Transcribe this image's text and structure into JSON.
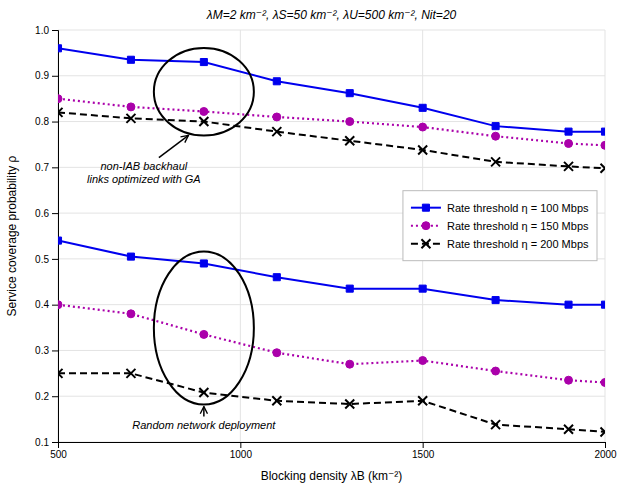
{
  "chart_data": {
    "type": "line",
    "title": "λM=2 km⁻², λS=50 km⁻², λU=500 km⁻², Nit=20",
    "xlabel": "Blocking density λB (km⁻²)",
    "ylabel": "Service coverage probability ρ",
    "x": [
      500,
      700,
      900,
      1100,
      1300,
      1500,
      1700,
      1900,
      2000
    ],
    "series": [
      {
        "name": "Rate threshold η = 100 Mbps",
        "color": "#0000EE",
        "marker": "square",
        "line_style": "solid",
        "values": [
          0.96,
          0.935,
          0.93,
          0.888,
          0.862,
          0.83,
          0.79,
          0.778,
          0.778
        ]
      },
      {
        "name": "Rate threshold η = 150 Mbps",
        "color": "#AA00AA",
        "marker": "circle",
        "line_style": "dotted",
        "values": [
          0.85,
          0.832,
          0.822,
          0.81,
          0.8,
          0.788,
          0.768,
          0.752,
          0.748
        ]
      },
      {
        "name": "Rate threshold η = 200 Mbps",
        "color": "#000000",
        "marker": "x",
        "line_style": "dashed",
        "values": [
          0.82,
          0.807,
          0.8,
          0.778,
          0.758,
          0.738,
          0.712,
          0.702,
          0.698
        ]
      },
      {
        "color": "#0000EE",
        "marker": "square",
        "line_style": "solid",
        "values": [
          0.54,
          0.505,
          0.49,
          0.46,
          0.435,
          0.435,
          0.41,
          0.4,
          0.4
        ]
      },
      {
        "color": "#AA00AA",
        "marker": "circle",
        "line_style": "dotted",
        "values": [
          0.4,
          0.38,
          0.335,
          0.295,
          0.27,
          0.278,
          0.255,
          0.235,
          0.23
        ]
      },
      {
        "color": "#000000",
        "marker": "x",
        "line_style": "dashed",
        "values": [
          0.25,
          0.25,
          0.208,
          0.19,
          0.183,
          0.19,
          0.138,
          0.128,
          0.122
        ]
      }
    ],
    "annotations": [
      "non-IAB backhaul\nlinks optimized with GA",
      "Random network deployment"
    ],
    "xlim": [
      500,
      2000
    ],
    "ylim": [
      0.1,
      1.0
    ],
    "xticks": [
      500,
      1000,
      1500,
      2000
    ],
    "yticks": [
      0.1,
      0.2,
      0.3,
      0.4,
      0.5,
      0.6,
      0.7,
      0.8,
      0.9,
      {
        "value": 1.0,
        "label": "1.0"
      }
    ],
    "grid": true,
    "legend": "right"
  }
}
